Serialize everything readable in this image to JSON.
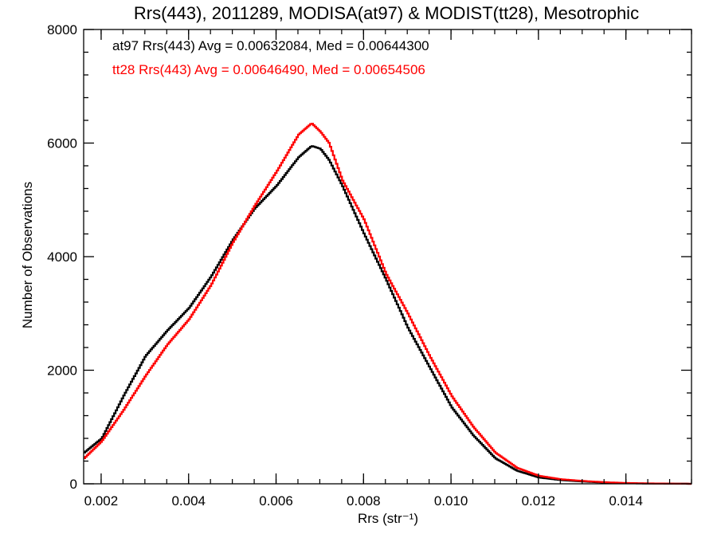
{
  "chart_data": {
    "type": "line",
    "step": true,
    "title": "Rrs(443), 2011289, MODISA(at97) & MODIST(tt28), Mesotrophic",
    "xlabel": "Rrs (str⁻¹)",
    "ylabel": "Number of Observations",
    "xlim": [
      0.0016,
      0.0155
    ],
    "ylim": [
      0,
      8000
    ],
    "xticks": [
      0.002,
      0.004,
      0.006,
      0.008,
      0.01,
      0.012,
      0.014
    ],
    "xtick_labels": [
      "0.002",
      "0.004",
      "0.006",
      "0.008",
      "0.010",
      "0.012",
      "0.014"
    ],
    "yticks": [
      0,
      2000,
      4000,
      6000,
      8000
    ],
    "ytick_labels": [
      "0",
      "2000",
      "4000",
      "6000",
      "8000"
    ],
    "grid": false,
    "series": [
      {
        "name": "at97",
        "color": "#000000",
        "label": "at97 Rrs(443) Avg = 0.00632084, Med = 0.00644300",
        "x": [
          0.0016,
          0.002,
          0.0025,
          0.003,
          0.0035,
          0.004,
          0.0045,
          0.005,
          0.0055,
          0.006,
          0.0065,
          0.0068,
          0.007,
          0.0072,
          0.0075,
          0.008,
          0.0085,
          0.009,
          0.0095,
          0.01,
          0.0105,
          0.011,
          0.0115,
          0.012,
          0.0125,
          0.013,
          0.0135,
          0.014,
          0.0145,
          0.015,
          0.0155
        ],
        "y": [
          550,
          800,
          1550,
          2250,
          2700,
          3100,
          3650,
          4300,
          4850,
          5250,
          5750,
          5950,
          5900,
          5700,
          5250,
          4400,
          3600,
          2750,
          2050,
          1350,
          850,
          450,
          230,
          110,
          65,
          40,
          20,
          10,
          5,
          3,
          0
        ]
      },
      {
        "name": "tt28",
        "color": "#ff0000",
        "label": "tt28 Rrs(443) Avg = 0.00646490, Med = 0.00654506",
        "x": [
          0.0016,
          0.002,
          0.0025,
          0.003,
          0.0035,
          0.004,
          0.0045,
          0.005,
          0.0055,
          0.006,
          0.0065,
          0.0068,
          0.007,
          0.0072,
          0.0075,
          0.008,
          0.0085,
          0.009,
          0.0095,
          0.01,
          0.0105,
          0.011,
          0.0115,
          0.012,
          0.0125,
          0.013,
          0.0135,
          0.014,
          0.0145,
          0.015,
          0.0155
        ],
        "y": [
          450,
          750,
          1300,
          1900,
          2450,
          2900,
          3500,
          4250,
          4900,
          5500,
          6150,
          6350,
          6200,
          6000,
          5350,
          4650,
          3700,
          3000,
          2250,
          1550,
          1000,
          550,
          280,
          140,
          80,
          50,
          28,
          14,
          7,
          4,
          0
        ]
      }
    ]
  }
}
